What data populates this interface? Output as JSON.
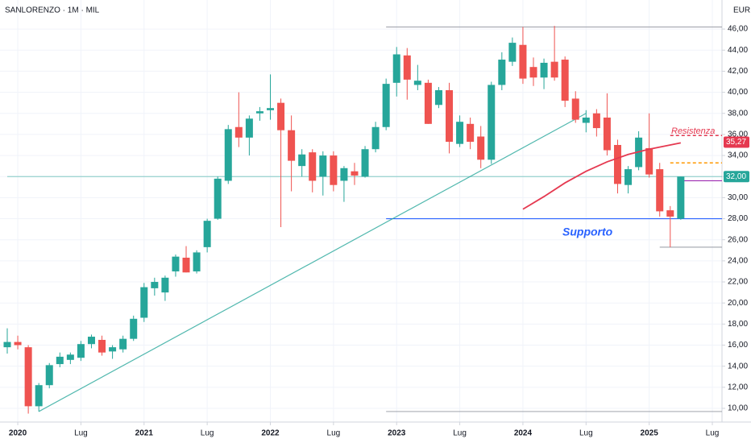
{
  "chart_data": {
    "type": "candlestick",
    "title": "SANLORENZO · 1M · MIL",
    "currency": "EUR",
    "up_color": "#26a69a",
    "down_color": "#ef5350",
    "x": [
      "2019-12",
      "2020-01",
      "2020-02",
      "2020-03",
      "2020-04",
      "2020-05",
      "2020-06",
      "2020-07",
      "2020-08",
      "2020-09",
      "2020-10",
      "2020-11",
      "2020-12",
      "2021-01",
      "2021-02",
      "2021-03",
      "2021-04",
      "2021-05",
      "2021-06",
      "2021-07",
      "2021-08",
      "2021-09",
      "2021-10",
      "2021-11",
      "2021-12",
      "2022-01",
      "2022-02",
      "2022-03",
      "2022-04",
      "2022-05",
      "2022-06",
      "2022-07",
      "2022-08",
      "2022-09",
      "2022-10",
      "2022-11",
      "2022-12",
      "2023-01",
      "2023-02",
      "2023-03",
      "2023-04",
      "2023-05",
      "2023-06",
      "2023-07",
      "2023-08",
      "2023-09",
      "2023-10",
      "2023-11",
      "2023-12",
      "2024-01",
      "2024-02",
      "2024-03",
      "2024-04",
      "2024-05",
      "2024-06",
      "2024-07",
      "2024-08",
      "2024-09",
      "2024-10",
      "2024-11",
      "2024-12",
      "2025-01",
      "2025-02",
      "2025-03",
      "2025-04"
    ],
    "open": [
      15.8,
      16.3,
      15.8,
      10.2,
      12.2,
      14.2,
      14.6,
      14.8,
      16.1,
      16.5,
      15.4,
      15.6,
      16.6,
      18.6,
      21.4,
      21.0,
      23.0,
      24.3,
      23.0,
      25.3,
      28.0,
      31.6,
      36.7,
      35.7,
      38.0,
      38.3,
      39.0,
      36.4,
      33.0,
      34.3,
      32.0,
      34.0,
      31.6,
      32.5,
      32.0,
      34.6,
      36.7,
      40.9,
      43.5,
      40.7,
      40.9,
      38.8,
      40.2,
      35.1,
      37.0,
      35.8,
      33.6,
      40.7,
      42.9,
      44.5,
      42.4,
      41.4,
      42.9,
      43.1,
      39.4,
      37.1,
      38.0,
      37.6,
      35.0,
      31.2,
      32.9,
      34.7,
      32.7,
      28.8,
      28.0
    ],
    "high": [
      17.6,
      16.9,
      16.0,
      12.4,
      14.3,
      15.3,
      15.3,
      16.4,
      17.0,
      16.9,
      16.0,
      16.9,
      18.8,
      21.9,
      22.4,
      22.6,
      24.6,
      25.4,
      25.0,
      28.0,
      32.0,
      36.9,
      40.0,
      37.8,
      38.6,
      41.7,
      39.4,
      37.8,
      34.6,
      34.6,
      34.4,
      34.4,
      33.0,
      33.3,
      34.9,
      37.2,
      41.3,
      44.3,
      44.2,
      42.6,
      41.2,
      40.5,
      40.9,
      37.8,
      37.6,
      36.8,
      41.0,
      43.8,
      45.2,
      46.2,
      43.3,
      43.2,
      46.3,
      43.4,
      40.1,
      38.3,
      38.4,
      39.9,
      35.5,
      33.0,
      36.3,
      38.0,
      33.3,
      29.2,
      32.0
    ],
    "low": [
      15.2,
      15.6,
      9.5,
      9.7,
      11.9,
      13.9,
      14.2,
      14.5,
      15.7,
      15.0,
      14.7,
      15.3,
      16.4,
      18.2,
      20.7,
      20.2,
      22.5,
      22.9,
      22.8,
      24.8,
      27.9,
      31.3,
      34.8,
      34.0,
      37.3,
      37.4,
      27.2,
      30.6,
      32.0,
      30.5,
      30.2,
      30.6,
      29.6,
      31.2,
      31.9,
      34.3,
      36.4,
      39.6,
      39.3,
      40.2,
      37.0,
      38.5,
      34.2,
      34.8,
      34.6,
      32.8,
      33.2,
      40.2,
      42.5,
      40.8,
      40.6,
      40.3,
      41.1,
      38.6,
      37.1,
      36.2,
      35.8,
      34.0,
      30.4,
      30.4,
      32.6,
      31.9,
      28.2,
      25.3,
      27.9
    ],
    "close": [
      16.3,
      16.0,
      10.2,
      12.2,
      14.1,
      14.9,
      15.1,
      16.1,
      16.8,
      15.3,
      15.8,
      16.6,
      18.5,
      21.5,
      22.0,
      22.4,
      24.4,
      22.9,
      24.8,
      27.8,
      31.8,
      36.5,
      35.7,
      37.5,
      38.2,
      38.5,
      36.4,
      33.5,
      34.1,
      31.6,
      34.0,
      31.2,
      32.8,
      32.1,
      34.6,
      36.7,
      40.8,
      43.6,
      41.2,
      41.1,
      37.0,
      40.2,
      35.3,
      37.2,
      35.3,
      33.6,
      40.7,
      43.1,
      44.7,
      41.3,
      41.4,
      42.8,
      41.4,
      39.2,
      37.4,
      37.6,
      36.6,
      34.5,
      31.3,
      32.7,
      35.7,
      32.2,
      28.7,
      28.2,
      32.0
    ],
    "ylim": [
      10,
      46
    ],
    "yticks": [
      {
        "value": 10,
        "label": "10,00"
      },
      {
        "value": 12,
        "label": "12,00"
      },
      {
        "value": 14,
        "label": "14,00"
      },
      {
        "value": 16,
        "label": "16,00"
      },
      {
        "value": 18,
        "label": "18,00"
      },
      {
        "value": 20,
        "label": "20,00"
      },
      {
        "value": 22,
        "label": "22,00"
      },
      {
        "value": 24,
        "label": "24,00"
      },
      {
        "value": 26,
        "label": "26,00"
      },
      {
        "value": 28,
        "label": "28,00"
      },
      {
        "value": 30,
        "label": "30,00"
      },
      {
        "value": 32,
        "label": "32,00"
      },
      {
        "value": 34,
        "label": "34,00"
      },
      {
        "value": 36,
        "label": "36,00"
      },
      {
        "value": 38,
        "label": "38,00"
      },
      {
        "value": 40,
        "label": "40,00"
      },
      {
        "value": 42,
        "label": "42,00"
      },
      {
        "value": 44,
        "label": "44,00"
      },
      {
        "value": 46,
        "label": "46,00"
      }
    ],
    "xticks": [
      {
        "value": "2020-01",
        "label": "2020"
      },
      {
        "value": "2020-07",
        "label": "Lug"
      },
      {
        "value": "2021-01",
        "label": "2021"
      },
      {
        "value": "2021-07",
        "label": "Lug"
      },
      {
        "value": "2022-01",
        "label": "2022"
      },
      {
        "value": "2022-07",
        "label": "Lug"
      },
      {
        "value": "2023-01",
        "label": "2023"
      },
      {
        "value": "2023-07",
        "label": "Lug"
      },
      {
        "value": "2024-01",
        "label": "2024"
      },
      {
        "value": "2024-07",
        "label": "Lug"
      },
      {
        "value": "2025-01",
        "label": "2025"
      },
      {
        "value": "2025-07",
        "label": "Lug"
      }
    ],
    "grid": true,
    "lines": [
      {
        "from": "2019-12",
        "to": "2025-08",
        "values": [
          32.0,
          32.0
        ],
        "color": "#26a69a",
        "style": "solid",
        "opacity": 0.45
      },
      {
        "from": "2022-12",
        "to": "2025-08",
        "values": [
          46.2,
          46.2
        ],
        "color": "#9598a1",
        "style": "solid",
        "opacity": 0.8
      },
      {
        "from": "2022-12",
        "to": "2025-08",
        "values": [
          9.7,
          9.7
        ],
        "color": "#9598a1",
        "style": "solid",
        "opacity": 0.8
      },
      {
        "from": "2025-02",
        "to": "2025-08",
        "values": [
          25.3,
          25.3
        ],
        "color": "#9598a1",
        "style": "solid",
        "opacity": 0.8
      },
      {
        "from": "2022-12",
        "to": "2025-08",
        "values": [
          28.0,
          28.0
        ],
        "color": "#2962ff",
        "style": "solid",
        "opacity": 1
      },
      {
        "from": "2020-03",
        "to": "2024-07",
        "values": [
          9.7,
          38.0
        ],
        "color": "#26a69a",
        "style": "solid",
        "opacity": 0.8
      },
      {
        "from": "2025-03",
        "to": "2025-08",
        "values": [
          35.9,
          35.9
        ],
        "color": "#e53950",
        "style": "dashed",
        "opacity": 1
      },
      {
        "from": "2025-03",
        "to": "2025-08",
        "values": [
          33.3,
          33.3
        ],
        "color": "#ff9800",
        "style": "dashed",
        "opacity": 1
      },
      {
        "from": "2025-04",
        "to": "2025-08",
        "values": [
          31.6,
          31.6
        ],
        "color": "#9c27b0",
        "style": "solid",
        "opacity": 1
      }
    ],
    "moving_average": {
      "color": "#e53950",
      "x": [
        "2024-01",
        "2024-03",
        "2024-05",
        "2024-07",
        "2024-09",
        "2024-11",
        "2025-01",
        "2025-04"
      ],
      "values": [
        28.9,
        30.1,
        31.4,
        32.5,
        33.4,
        34.1,
        34.6,
        35.2
      ]
    },
    "price_labels": [
      {
        "value": 35.27,
        "label": "35,27",
        "color": "#e53950"
      },
      {
        "value": 32.0,
        "label": "32,00",
        "color": "#26a69a"
      }
    ],
    "annotations": [
      {
        "text": "Resistenza",
        "color": "#e53950"
      },
      {
        "text": "Supporto",
        "color": "#2962ff"
      }
    ]
  }
}
